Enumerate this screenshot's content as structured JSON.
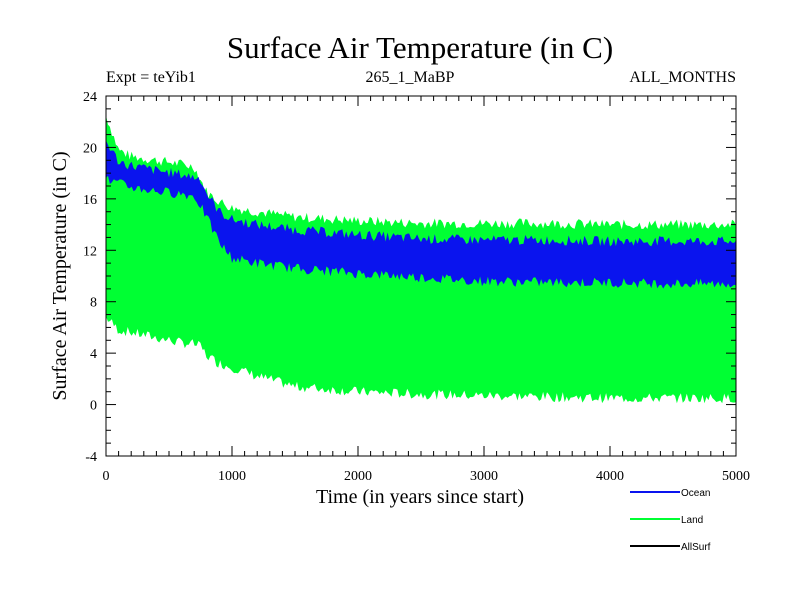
{
  "chart_data": {
    "type": "area",
    "title": "Surface Air Temperature (in C)",
    "subtitle_left": "Expt = teYib1",
    "subtitle_center": "265_1_MaBP",
    "subtitle_right": "ALL_MONTHS",
    "xlabel": "Time (in years since start)",
    "ylabel": "Surface Air Temperature (in C)",
    "xlim": [
      0,
      5000
    ],
    "ylim": [
      -4,
      24
    ],
    "x_ticks": [
      0,
      1000,
      2000,
      3000,
      4000,
      5000
    ],
    "y_ticks": [
      -4,
      0,
      4,
      8,
      12,
      16,
      20,
      24
    ],
    "x_tick_labels": [
      "0",
      "1000",
      "2000",
      "3000",
      "4000",
      "5000"
    ],
    "y_tick_labels": [
      "-4",
      "0",
      "4",
      "8",
      "12",
      "16",
      "20",
      "24"
    ],
    "x": [
      0,
      100,
      200,
      400,
      600,
      700,
      750,
      800,
      900,
      1000,
      1200,
      1500,
      2000,
      2500,
      3000,
      3500,
      4000,
      4500,
      5000
    ],
    "series": [
      {
        "name": "Land",
        "color": "#00ff33",
        "upper": [
          22.5,
          19.8,
          19.3,
          19.0,
          18.7,
          18.5,
          17.5,
          16.5,
          15.8,
          15.3,
          15.0,
          14.6,
          14.3,
          14.1,
          14.1,
          14.1,
          14.0,
          14.0,
          14.0
        ],
        "lower": [
          6.8,
          5.8,
          5.6,
          5.2,
          4.8,
          4.7,
          4.5,
          3.8,
          3.2,
          2.9,
          2.2,
          1.4,
          1.0,
          0.8,
          0.7,
          0.6,
          0.5,
          0.5,
          0.5
        ]
      },
      {
        "name": "Ocean",
        "color": "#0a14ee",
        "upper": [
          20.5,
          18.9,
          18.6,
          18.2,
          17.9,
          17.7,
          17.6,
          16.4,
          15.0,
          14.4,
          14.0,
          13.6,
          13.2,
          12.9,
          12.8,
          12.8,
          12.7,
          12.7,
          12.7
        ],
        "lower": [
          17.5,
          17.2,
          16.9,
          16.6,
          16.4,
          16.2,
          15.5,
          14.5,
          12.6,
          11.4,
          11.0,
          10.6,
          10.2,
          9.9,
          9.6,
          9.5,
          9.5,
          9.4,
          9.4
        ]
      },
      {
        "name": "AllSurf",
        "color": "#000000",
        "upper": [],
        "lower": []
      }
    ],
    "legend_position": "bottom-right"
  }
}
